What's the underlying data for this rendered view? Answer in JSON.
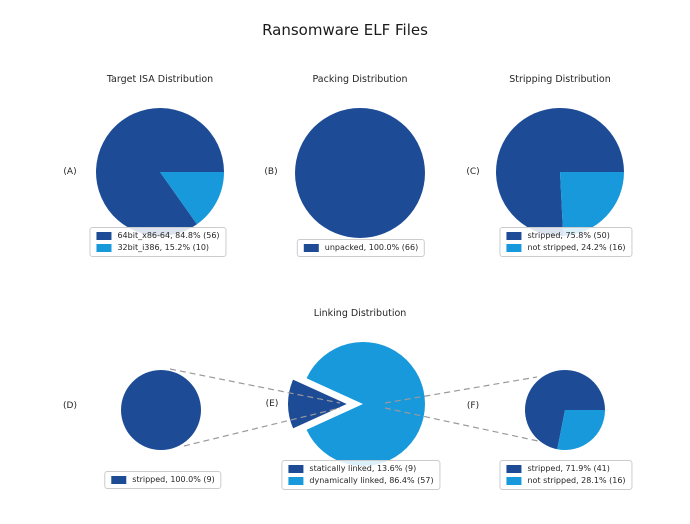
{
  "figure": {
    "title": "Ransomware ELF Files"
  },
  "colors": {
    "dark_blue": "#1d4b96",
    "light_blue": "#1899db",
    "connector_gray": "#9a9a9a",
    "legend_border": "#cccccc",
    "text": "#262626"
  },
  "chart_data": [
    {
      "type": "pie",
      "panel": "(A)",
      "title": "Target ISA Distribution",
      "legend_position": "bottom",
      "slices": [
        {
          "label": "64bit_x86-64",
          "pct": 84.8,
          "count": 56,
          "color": "#1d4b96"
        },
        {
          "label": "32bit_i386",
          "pct": 15.2,
          "count": 10,
          "color": "#1899db"
        }
      ]
    },
    {
      "type": "pie",
      "panel": "(B)",
      "title": "Packing Distribution",
      "legend_position": "bottom",
      "slices": [
        {
          "label": "unpacked",
          "pct": 100.0,
          "count": 66,
          "color": "#1d4b96"
        }
      ]
    },
    {
      "type": "pie",
      "panel": "(C)",
      "title": "Stripping Distribution",
      "legend_position": "bottom",
      "slices": [
        {
          "label": "stripped",
          "pct": 75.8,
          "count": 50,
          "color": "#1d4b96"
        },
        {
          "label": "not stripped",
          "pct": 24.2,
          "count": 16,
          "color": "#1899db"
        }
      ]
    },
    {
      "type": "pie",
      "panel": "(D)",
      "title": "",
      "legend_position": "bottom",
      "slices": [
        {
          "label": "stripped",
          "pct": 100.0,
          "count": 9,
          "color": "#1d4b96"
        }
      ]
    },
    {
      "type": "pie",
      "panel": "(E)",
      "title": "Linking Distribution",
      "legend_position": "bottom",
      "slices": [
        {
          "label": "statically linked",
          "pct": 13.6,
          "count": 9,
          "color": "#1d4b96",
          "exploded": true
        },
        {
          "label": "dynamically linked",
          "pct": 86.4,
          "count": 57,
          "color": "#1899db"
        }
      ]
    },
    {
      "type": "pie",
      "panel": "(F)",
      "title": "",
      "legend_position": "bottom",
      "slices": [
        {
          "label": "stripped",
          "pct": 71.9,
          "count": 41,
          "color": "#1d4b96"
        },
        {
          "label": "not stripped",
          "pct": 28.1,
          "count": 16,
          "color": "#1899db"
        }
      ]
    }
  ]
}
